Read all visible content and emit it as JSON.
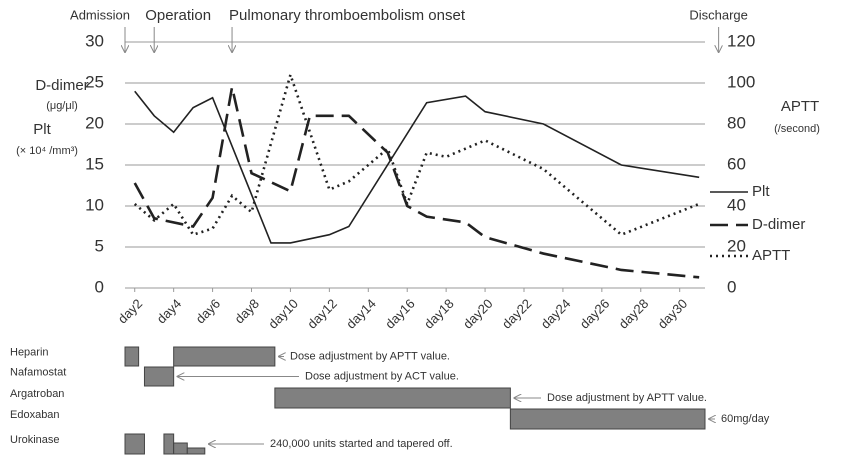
{
  "chart_data": {
    "type": "line",
    "annotations": [
      {
        "text": "Admission",
        "x": 1.5
      },
      {
        "text": "Operation",
        "x": 3
      },
      {
        "text": "Pulmonary thromboembolism  onset",
        "x": 7
      },
      {
        "text": "Discharge",
        "x": 32
      }
    ],
    "ylabel": [
      "D-dimer",
      "(μg/μl)",
      "Plt",
      "(× 10⁴ /mm³)"
    ],
    "y2label": [
      "APTT",
      "(/second)"
    ],
    "xlim": [
      1.5,
      31.3
    ],
    "xticks": [
      {
        "value": 2,
        "label": "day2"
      },
      {
        "value": 4,
        "label": "day4"
      },
      {
        "value": 6,
        "label": "day6"
      },
      {
        "value": 8,
        "label": "day8"
      },
      {
        "value": 10,
        "label": "day10"
      },
      {
        "value": 12,
        "label": "day12"
      },
      {
        "value": 14,
        "label": "day14"
      },
      {
        "value": 16,
        "label": "day16"
      },
      {
        "value": 18,
        "label": "day18"
      },
      {
        "value": 20,
        "label": "day20"
      },
      {
        "value": 22,
        "label": "day22"
      },
      {
        "value": 24,
        "label": "day24"
      },
      {
        "value": 26,
        "label": "day26"
      },
      {
        "value": 28,
        "label": "day28"
      },
      {
        "value": 30,
        "label": "day30"
      }
    ],
    "ylim": [
      0,
      30
    ],
    "yticks": [
      0,
      5,
      10,
      15,
      20,
      25,
      30
    ],
    "y2lim": [
      0,
      120
    ],
    "y2ticks": [
      0,
      20,
      40,
      60,
      80,
      100,
      120
    ],
    "grid": true,
    "legend": "right",
    "series": [
      {
        "name": "Plt",
        "color": "#222222",
        "dash": "solid",
        "axis": "y",
        "x": [
          2,
          3,
          4,
          5,
          6,
          9,
          10,
          11,
          12,
          13,
          17,
          19,
          20,
          23,
          27,
          31
        ],
        "values": [
          24,
          21,
          19,
          22,
          23.2,
          5.5,
          5.5,
          6,
          6.5,
          7.5,
          22.6,
          23.4,
          21.5,
          20,
          15,
          13.5
        ]
      },
      {
        "name": "D-dimer",
        "color": "#222222",
        "dash": "long",
        "axis": "y",
        "x": [
          2,
          3,
          5,
          6,
          7,
          8,
          10,
          11,
          13,
          15,
          16,
          17,
          19,
          20,
          23,
          27,
          31
        ],
        "values": [
          12.8,
          8.5,
          7.5,
          11,
          24.5,
          14,
          11.8,
          21,
          21,
          16.5,
          10,
          8.7,
          8,
          6.2,
          4.2,
          2.2,
          1.3
        ]
      },
      {
        "name": "APTT",
        "color": "#222222",
        "dash": "dot",
        "axis": "y2",
        "x": [
          2,
          3,
          4,
          5,
          6,
          7,
          8,
          10,
          12,
          13,
          15,
          16,
          17,
          18,
          20,
          23,
          27,
          31
        ],
        "values": [
          41,
          33,
          41,
          26,
          29,
          45,
          37,
          104,
          48,
          52,
          68,
          41,
          66,
          64,
          72,
          58,
          26,
          41
        ]
      }
    ]
  },
  "treatments": [
    {
      "name": "Heparin",
      "periods": [
        [
          1.5,
          2.2
        ],
        [
          4,
          9.2
        ]
      ],
      "note": "Dose adjustment by APTT value."
    },
    {
      "name": "Nafamostat",
      "periods": [
        [
          2.5,
          4
        ]
      ],
      "note": "Dose adjustment by ACT value."
    },
    {
      "name": "Argatroban",
      "periods": [
        [
          9.2,
          21.3
        ]
      ],
      "note": "Dose adjustment by APTT value."
    },
    {
      "name": "Edoxaban",
      "periods": [
        [
          21.3,
          31.3
        ]
      ],
      "note": "60mg/day"
    },
    {
      "name": "Urokinase",
      "periods": [
        [
          1.5,
          2.5
        ],
        [
          3.5,
          4
        ],
        [
          4,
          4.7
        ],
        [
          4.7,
          5.6
        ]
      ],
      "note": "240,000 units started and tapered off."
    }
  ]
}
